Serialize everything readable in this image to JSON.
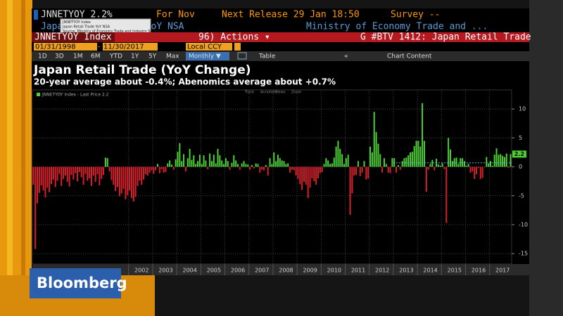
{
  "header": {
    "ticker": "JNNETYOY 2.2%",
    "period": "For Nov",
    "next_release": "Next Release 29 Jan 18:50",
    "survey": "Survey --",
    "name": "Japan Retail Trade YoY NSA",
    "source": "Ministry of Economy Trade and ...",
    "security": "JNNETYOY Index",
    "actions": "96) Actions ▾",
    "page": "G #BTV 1412: Japan Retail Trade",
    "start_date": "01/31/1998",
    "end_date": "11/30/2017",
    "currency": "Local CCY",
    "periods": [
      "1D",
      "3D",
      "1M",
      "6M",
      "YTD",
      "1Y",
      "5Y",
      "Max"
    ],
    "frequency": "Monthly ▼",
    "table": "Table",
    "chart_content": "Chart Content"
  },
  "tooltip": [
    "JNNETYOY Index",
    "Japan Retail Trade YoY NSA",
    "Source: Ministry of Economy Trade and Industry Source"
  ],
  "logo": "Bloomberg",
  "chart_data": {
    "type": "bar",
    "title": "Japan Retail Trade (YoY Change)",
    "subtitle": "20-year average about -0.4%; Abenomics average about +0.7%",
    "legend": "JNNETYOY Index - Last Price 2.2",
    "tools": [
      "Track",
      "Annotate",
      "News",
      "Zoom"
    ],
    "positive_color": "#4cd033",
    "negative_color": "#d8202c",
    "reference_line": {
      "value": 0.7,
      "color": "#4fc3e8"
    },
    "categories": [
      null,
      null,
      null,
      null,
      null,
      null,
      null,
      null,
      null,
      null,
      null,
      null,
      null,
      null,
      null,
      null,
      null,
      null,
      null,
      null,
      null,
      null,
      null,
      null,
      null,
      null,
      null,
      null,
      null,
      null,
      null,
      null,
      null,
      null,
      null,
      null,
      null,
      null,
      null,
      null,
      null,
      null,
      null,
      null,
      null,
      null,
      null,
      null,
      null,
      null,
      null,
      null,
      null,
      null,
      "2002",
      null,
      null,
      null,
      null,
      null,
      null,
      null,
      null,
      null,
      null,
      null,
      "2003",
      null,
      null,
      null,
      null,
      null,
      null,
      null,
      null,
      null,
      null,
      null,
      "2004",
      null,
      null,
      null,
      null,
      null,
      null,
      null,
      null,
      null,
      null,
      null,
      "2005",
      null,
      null,
      null,
      null,
      null,
      null,
      null,
      null,
      null,
      null,
      null,
      "2006",
      null,
      null,
      null,
      null,
      null,
      null,
      null,
      null,
      null,
      null,
      null,
      "2007",
      null,
      null,
      null,
      null,
      null,
      null,
      null,
      null,
      null,
      null,
      null,
      "2008",
      null,
      null,
      null,
      null,
      null,
      null,
      null,
      null,
      null,
      null,
      null,
      "2009",
      null,
      null,
      null,
      null,
      null,
      null,
      null,
      null,
      null,
      null,
      null,
      "2010",
      null,
      null,
      null,
      null,
      null,
      null,
      null,
      null,
      null,
      null,
      null,
      "2011",
      null,
      null,
      null,
      null,
      null,
      null,
      null,
      null,
      null,
      null,
      null,
      "2012",
      null,
      null,
      null,
      null,
      null,
      null,
      null,
      null,
      null,
      null,
      null,
      "2013",
      null,
      null,
      null,
      null,
      null,
      null,
      null,
      null,
      null,
      null,
      null,
      "2014",
      null,
      null,
      null,
      null,
      null,
      null,
      null,
      null,
      null,
      null,
      null,
      "2015",
      null,
      null,
      null,
      null,
      null,
      null,
      null,
      null,
      null,
      null,
      null,
      "2016",
      null,
      null,
      null,
      null,
      null,
      null,
      null,
      null,
      null,
      null,
      null,
      "2017",
      null,
      null,
      null,
      null
    ],
    "values": [
      -3.1,
      -14.2,
      -6.3,
      -4.5,
      -3.2,
      -4.1,
      -5.3,
      -3.6,
      -4.4,
      -3.0,
      -2.2,
      -3.5,
      -2.4,
      -1.2,
      -3.3,
      -2.1,
      -1.5,
      -2.6,
      -3.4,
      -1.4,
      -2.2,
      -1.1,
      -2.5,
      -0.9,
      -1.8,
      -3.1,
      -1.2,
      -2.4,
      -2.0,
      -3.3,
      -1.5,
      -2.6,
      -1.3,
      -3.2,
      -2.1,
      -1.4,
      1.6,
      1.5,
      -0.8,
      -2.3,
      -3.1,
      -4.2,
      -3.5,
      -5.1,
      -4.6,
      -3.8,
      -5.6,
      -4.9,
      -4.1,
      -5.4,
      -6.0,
      -5.2,
      -3.3,
      -2.4,
      -3.1,
      -2.2,
      -1.3,
      -1.5,
      -1.0,
      -0.6,
      -1.2,
      -0.6,
      0.5,
      -1.1,
      -0.4,
      -1.0,
      -0.9,
      0.6,
      1.1,
      0.4,
      -0.5,
      1.3,
      2.6,
      4.1,
      1.0,
      2.2,
      -0.8,
      1.5,
      3.1,
      1.2,
      2.0,
      0.5,
      1.0,
      2.1,
      0.5,
      2.0,
      1.1,
      -0.4,
      2.3,
      1.0,
      2.1,
      0.6,
      3.1,
      2.0,
      1.1,
      0.5,
      1.5,
      1.0,
      -0.5,
      0.7,
      2.0,
      1.1,
      0.5,
      -0.5,
      0.6,
      1.0,
      0.5,
      0.4,
      -0.5,
      0.3,
      -0.3,
      0.6,
      0.5,
      -1.0,
      -0.5,
      -0.6,
      0.3,
      -1.5,
      1.5,
      0.5,
      2.5,
      1.0,
      2.1,
      1.5,
      1.1,
      1.0,
      0.5,
      0.6,
      -1.0,
      -0.5,
      -0.6,
      -1.5,
      -2.1,
      -3.0,
      -4.0,
      -2.6,
      -3.1,
      -5.4,
      -3.6,
      -2.0,
      -2.5,
      -3.1,
      -2.0,
      -1.1,
      -0.9,
      0.5,
      1.5,
      1.1,
      0.5,
      0.6,
      1.6,
      3.5,
      4.5,
      3.1,
      2.2,
      0.5,
      1.5,
      2.1,
      -8.3,
      -4.6,
      -1.5,
      -1.4,
      1.0,
      -1.6,
      -1.0,
      1.0,
      -2.2,
      -2.0,
      3.5,
      2.5,
      9.5,
      6.0,
      4.0,
      2.2,
      -1.0,
      1.5,
      0.5,
      -1.0,
      -1.1,
      1.5,
      1.5,
      -1.0,
      0.3,
      -0.5,
      1.0,
      1.5,
      1.6,
      2.0,
      2.5,
      2.6,
      3.6,
      4.5,
      4.5,
      3.5,
      11.0,
      4.5,
      -4.3,
      -0.5,
      0.5,
      1.2,
      -0.6,
      1.4,
      0.4,
      0.2,
      0.6,
      -0.4,
      -9.7,
      5.0,
      3.0,
      1.0,
      1.5,
      1.6,
      0.5,
      1.5,
      1.5,
      1.0,
      0.2,
      0.5,
      -1.0,
      -0.8,
      -2.1,
      -1.3,
      -0.2,
      -2.1,
      -1.9,
      -0.1,
      1.7,
      0.6,
      1.0,
      0.2,
      2.1,
      3.2,
      2.1,
      2.2,
      1.9,
      1.7,
      2.3,
      -0.2,
      2.2
    ],
    "ylim": [
      -16.8,
      13.3
    ],
    "yticks": [
      10,
      5,
      0,
      -5,
      -10,
      -15
    ],
    "grid": true
  }
}
